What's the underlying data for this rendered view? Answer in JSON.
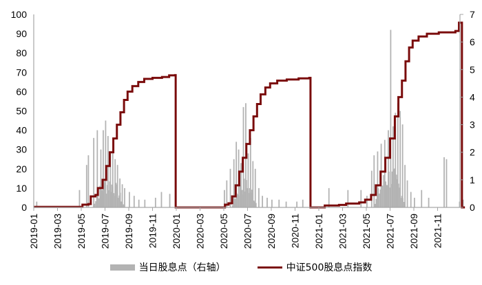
{
  "chart_data": {
    "type": "bar+line",
    "title": "",
    "xlabel": "",
    "left_axis": {
      "ticks": [
        0,
        10,
        20,
        30,
        40,
        50,
        60,
        70,
        80,
        90,
        100
      ],
      "range": [
        0,
        100
      ]
    },
    "right_axis": {
      "ticks": [
        0,
        1,
        2,
        3,
        4,
        5,
        6,
        7
      ],
      "range": [
        0,
        7
      ]
    },
    "x_ticks": [
      "2019-01",
      "2019-03",
      "2019-05",
      "2019-07",
      "2019-09",
      "2019-11",
      "2020-01",
      "2020-03",
      "2020-05",
      "2020-07",
      "2020-09",
      "2020-11",
      "2021-01",
      "2021-03",
      "2021-05",
      "2021-07",
      "2021-09",
      "2021-11"
    ],
    "legend": [
      {
        "label": "当日股息点（右轴）",
        "type": "bar",
        "color": "#b3b3b3"
      },
      {
        "label": "中证500股息点指数",
        "type": "line",
        "color": "#7a0b0b"
      }
    ],
    "colors": {
      "bar": "#b3b3b3",
      "line": "#7a0b0b",
      "axis": "#a6a6a6"
    },
    "series": [
      {
        "name": "中证500股息点指数",
        "type": "line",
        "axis": "right",
        "points": [
          [
            0.0,
            0.02
          ],
          [
            3.6,
            0.02
          ],
          [
            4.1,
            0.1
          ],
          [
            4.6,
            0.12
          ],
          [
            4.8,
            0.4
          ],
          [
            5.2,
            0.45
          ],
          [
            5.4,
            0.7
          ],
          [
            5.8,
            1.0
          ],
          [
            6.1,
            1.5
          ],
          [
            6.4,
            2.0
          ],
          [
            6.7,
            2.5
          ],
          [
            7.0,
            3.0
          ],
          [
            7.3,
            3.45
          ],
          [
            7.6,
            3.9
          ],
          [
            7.9,
            4.2
          ],
          [
            8.3,
            4.4
          ],
          [
            8.8,
            4.55
          ],
          [
            9.3,
            4.66
          ],
          [
            10.0,
            4.7
          ],
          [
            10.8,
            4.73
          ],
          [
            11.4,
            4.79
          ],
          [
            11.9,
            4.8
          ],
          [
            11.95,
            0.0
          ],
          [
            15.8,
            0.0
          ],
          [
            16.1,
            0.1
          ],
          [
            16.4,
            0.15
          ],
          [
            16.7,
            0.4
          ],
          [
            17.0,
            0.8
          ],
          [
            17.3,
            1.3
          ],
          [
            17.6,
            1.8
          ],
          [
            17.9,
            2.3
          ],
          [
            18.2,
            2.8
          ],
          [
            18.5,
            3.3
          ],
          [
            18.8,
            3.75
          ],
          [
            19.1,
            4.1
          ],
          [
            19.5,
            4.35
          ],
          [
            19.9,
            4.5
          ],
          [
            20.5,
            4.6
          ],
          [
            21.3,
            4.64
          ],
          [
            22.3,
            4.68
          ],
          [
            23.2,
            4.7
          ],
          [
            23.3,
            0.0
          ],
          [
            24.4,
            0.0
          ],
          [
            24.5,
            0.07
          ],
          [
            25.7,
            0.09
          ],
          [
            26.3,
            0.14
          ],
          [
            27.4,
            0.18
          ],
          [
            27.9,
            0.28
          ],
          [
            28.4,
            0.45
          ],
          [
            28.8,
            0.8
          ],
          [
            29.2,
            1.3
          ],
          [
            29.6,
            1.8
          ],
          [
            30.0,
            2.5
          ],
          [
            30.4,
            3.3
          ],
          [
            30.7,
            4.0
          ],
          [
            31.0,
            4.6
          ],
          [
            31.3,
            5.3
          ],
          [
            31.6,
            5.8
          ],
          [
            31.9,
            6.05
          ],
          [
            32.4,
            6.2
          ],
          [
            33.1,
            6.3
          ],
          [
            34.1,
            6.35
          ],
          [
            35.5,
            6.4
          ],
          [
            35.8,
            6.7
          ],
          [
            36.0,
            6.7
          ],
          [
            36.05,
            0.0
          ],
          [
            36.3,
            0.0
          ]
        ]
      },
      {
        "name": "当日股息点",
        "type": "bar",
        "axis": "left",
        "peaks": [
          [
            0.2,
            3
          ],
          [
            3.8,
            9
          ],
          [
            4.4,
            22
          ],
          [
            4.55,
            27
          ],
          [
            5.0,
            36
          ],
          [
            5.3,
            40
          ],
          [
            5.6,
            30
          ],
          [
            5.8,
            40
          ],
          [
            6.0,
            45
          ],
          [
            6.2,
            37
          ],
          [
            6.4,
            28
          ],
          [
            6.6,
            30
          ],
          [
            6.8,
            25
          ],
          [
            7.0,
            22
          ],
          [
            7.2,
            15
          ],
          [
            7.4,
            12
          ],
          [
            7.6,
            10
          ],
          [
            8.0,
            8
          ],
          [
            8.4,
            6
          ],
          [
            8.8,
            4
          ],
          [
            9.3,
            4
          ],
          [
            10.2,
            5
          ],
          [
            10.7,
            8
          ],
          [
            11.4,
            7
          ],
          [
            11.9,
            1
          ],
          [
            16.0,
            9
          ],
          [
            16.2,
            14
          ],
          [
            16.5,
            20
          ],
          [
            16.8,
            25
          ],
          [
            17.0,
            34
          ],
          [
            17.2,
            30
          ],
          [
            17.4,
            23
          ],
          [
            17.6,
            52
          ],
          [
            17.8,
            54
          ],
          [
            18.0,
            28
          ],
          [
            18.2,
            36
          ],
          [
            18.4,
            24
          ],
          [
            18.6,
            20
          ],
          [
            18.9,
            10
          ],
          [
            19.2,
            6
          ],
          [
            19.6,
            5
          ],
          [
            20.0,
            4
          ],
          [
            20.6,
            4
          ],
          [
            21.2,
            3
          ],
          [
            22.1,
            3
          ],
          [
            22.6,
            4
          ],
          [
            24.8,
            10
          ],
          [
            26.4,
            9
          ],
          [
            27.5,
            9
          ],
          [
            28.0,
            6
          ],
          [
            28.4,
            19
          ],
          [
            28.6,
            27
          ],
          [
            28.9,
            29
          ],
          [
            29.2,
            33
          ],
          [
            29.5,
            35
          ],
          [
            29.8,
            40
          ],
          [
            30.0,
            92
          ],
          [
            30.2,
            42
          ],
          [
            30.4,
            49
          ],
          [
            30.6,
            54
          ],
          [
            30.8,
            50
          ],
          [
            31.0,
            43
          ],
          [
            31.2,
            22
          ],
          [
            31.4,
            14
          ],
          [
            31.7,
            8
          ],
          [
            32.0,
            5
          ],
          [
            32.6,
            9
          ],
          [
            33.2,
            5
          ],
          [
            34.5,
            26
          ],
          [
            34.7,
            25
          ],
          [
            35.8,
            3
          ],
          [
            36.1,
            4
          ]
        ]
      }
    ]
  }
}
